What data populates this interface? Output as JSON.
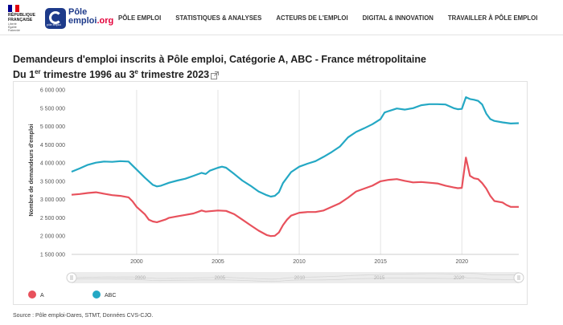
{
  "header": {
    "republic": [
      "RÉPUBLIQUE",
      "FRANÇAISE"
    ],
    "motto": [
      "Liberté",
      "Égalité",
      "Fraternité"
    ],
    "logo_line1": "Pôle",
    "logo_line2": "emploi",
    "logo_tld": ".org",
    "logo_badge": "pôle emploi",
    "nav": [
      "PÔLE EMPLOI",
      "STATISTIQUES & ANALYSES",
      "ACTEURS DE L'EMPLOI",
      "DIGITAL & INNOVATION",
      "TRAVAILLER À PÔLE EMPLOI"
    ],
    "colors": {
      "flag_blue": "#000091",
      "flag_red": "#e1000f",
      "brand": "#1d3a8a",
      "brand_accent": "#e4003a"
    }
  },
  "page": {
    "title_line1": "Demandeurs d'emploi inscrits à Pôle emploi, Catégorie A, ABC - France métropolitaine",
    "title_line2_pre": "Du 1",
    "title_line2_sup1": "er",
    "title_line2_mid": " trimestre 1996 au 3",
    "title_line2_sup2": "e",
    "title_line2_post": " trimestre 2023",
    "source": "Source : Pôle emploi-Dares, STMT, Données CVS-CJO."
  },
  "chart_data": {
    "type": "line",
    "title": "",
    "xlabel": "",
    "ylabel": "Nombre de demandeurs d'emploi",
    "xlim": [
      1996,
      2023.5
    ],
    "ylim": [
      1500000,
      6000000
    ],
    "yticks": [
      1500000,
      2000000,
      2500000,
      3000000,
      3500000,
      4000000,
      4500000,
      5000000,
      5500000,
      6000000
    ],
    "ytick_labels": [
      "1 500 000",
      "2 000 000",
      "2 500 000",
      "3 000 000",
      "3 500 000",
      "4 000 000",
      "4 500 000",
      "5 000 000",
      "5 500 000",
      "6 000 000"
    ],
    "xticks": [
      2000,
      2005,
      2010,
      2015,
      2020
    ],
    "xtick_labels": [
      "2000",
      "2005",
      "2010",
      "2015",
      "2020"
    ],
    "grid": "vertical",
    "legend": "bottom-left",
    "series": [
      {
        "name": "A",
        "color": "#e8515c",
        "points": [
          [
            1996.0,
            3130000
          ],
          [
            1996.5,
            3150000
          ],
          [
            1997.0,
            3180000
          ],
          [
            1997.5,
            3200000
          ],
          [
            1998.0,
            3160000
          ],
          [
            1998.5,
            3120000
          ],
          [
            1999.0,
            3100000
          ],
          [
            1999.5,
            3060000
          ],
          [
            1999.75,
            2950000
          ],
          [
            2000.0,
            2800000
          ],
          [
            2000.5,
            2600000
          ],
          [
            2000.75,
            2450000
          ],
          [
            2001.0,
            2400000
          ],
          [
            2001.25,
            2380000
          ],
          [
            2001.75,
            2450000
          ],
          [
            2002.0,
            2500000
          ],
          [
            2002.5,
            2540000
          ],
          [
            2003.0,
            2580000
          ],
          [
            2003.5,
            2620000
          ],
          [
            2003.75,
            2660000
          ],
          [
            2004.0,
            2700000
          ],
          [
            2004.25,
            2670000
          ],
          [
            2004.5,
            2680000
          ],
          [
            2005.0,
            2700000
          ],
          [
            2005.5,
            2690000
          ],
          [
            2006.0,
            2600000
          ],
          [
            2006.5,
            2450000
          ],
          [
            2007.0,
            2300000
          ],
          [
            2007.5,
            2150000
          ],
          [
            2008.0,
            2030000
          ],
          [
            2008.25,
            2000000
          ],
          [
            2008.5,
            2010000
          ],
          [
            2008.75,
            2100000
          ],
          [
            2009.0,
            2300000
          ],
          [
            2009.25,
            2450000
          ],
          [
            2009.5,
            2560000
          ],
          [
            2010.0,
            2640000
          ],
          [
            2010.5,
            2660000
          ],
          [
            2011.0,
            2660000
          ],
          [
            2011.5,
            2700000
          ],
          [
            2012.0,
            2800000
          ],
          [
            2012.5,
            2900000
          ],
          [
            2013.0,
            3050000
          ],
          [
            2013.5,
            3220000
          ],
          [
            2014.0,
            3300000
          ],
          [
            2014.5,
            3380000
          ],
          [
            2015.0,
            3500000
          ],
          [
            2015.5,
            3540000
          ],
          [
            2016.0,
            3560000
          ],
          [
            2016.5,
            3510000
          ],
          [
            2017.0,
            3470000
          ],
          [
            2017.5,
            3480000
          ],
          [
            2018.0,
            3460000
          ],
          [
            2018.5,
            3440000
          ],
          [
            2019.0,
            3380000
          ],
          [
            2019.5,
            3330000
          ],
          [
            2019.75,
            3310000
          ],
          [
            2020.0,
            3320000
          ],
          [
            2020.25,
            4150000
          ],
          [
            2020.5,
            3650000
          ],
          [
            2020.75,
            3580000
          ],
          [
            2021.0,
            3560000
          ],
          [
            2021.25,
            3450000
          ],
          [
            2021.5,
            3300000
          ],
          [
            2021.75,
            3100000
          ],
          [
            2022.0,
            2960000
          ],
          [
            2022.5,
            2920000
          ],
          [
            2022.75,
            2850000
          ],
          [
            2023.0,
            2800000
          ],
          [
            2023.5,
            2800000
          ]
        ]
      },
      {
        "name": "ABC",
        "color": "#24a8c4",
        "points": [
          [
            1996.0,
            3760000
          ],
          [
            1996.5,
            3850000
          ],
          [
            1997.0,
            3950000
          ],
          [
            1997.5,
            4010000
          ],
          [
            1998.0,
            4040000
          ],
          [
            1998.5,
            4030000
          ],
          [
            1999.0,
            4050000
          ],
          [
            1999.5,
            4040000
          ],
          [
            1999.75,
            3930000
          ],
          [
            2000.0,
            3820000
          ],
          [
            2000.5,
            3600000
          ],
          [
            2001.0,
            3400000
          ],
          [
            2001.25,
            3360000
          ],
          [
            2001.5,
            3380000
          ],
          [
            2002.0,
            3460000
          ],
          [
            2002.5,
            3520000
          ],
          [
            2003.0,
            3570000
          ],
          [
            2003.5,
            3650000
          ],
          [
            2004.0,
            3730000
          ],
          [
            2004.25,
            3700000
          ],
          [
            2004.5,
            3790000
          ],
          [
            2005.0,
            3870000
          ],
          [
            2005.25,
            3900000
          ],
          [
            2005.5,
            3870000
          ],
          [
            2006.0,
            3700000
          ],
          [
            2006.5,
            3520000
          ],
          [
            2007.0,
            3380000
          ],
          [
            2007.5,
            3220000
          ],
          [
            2008.0,
            3120000
          ],
          [
            2008.25,
            3080000
          ],
          [
            2008.5,
            3100000
          ],
          [
            2008.75,
            3200000
          ],
          [
            2009.0,
            3450000
          ],
          [
            2009.5,
            3750000
          ],
          [
            2010.0,
            3900000
          ],
          [
            2010.5,
            3980000
          ],
          [
            2011.0,
            4050000
          ],
          [
            2011.5,
            4170000
          ],
          [
            2012.0,
            4300000
          ],
          [
            2012.5,
            4450000
          ],
          [
            2013.0,
            4700000
          ],
          [
            2013.5,
            4850000
          ],
          [
            2014.0,
            4950000
          ],
          [
            2014.5,
            5060000
          ],
          [
            2015.0,
            5200000
          ],
          [
            2015.25,
            5380000
          ],
          [
            2015.5,
            5420000
          ],
          [
            2016.0,
            5490000
          ],
          [
            2016.5,
            5460000
          ],
          [
            2017.0,
            5500000
          ],
          [
            2017.5,
            5580000
          ],
          [
            2018.0,
            5610000
          ],
          [
            2018.5,
            5610000
          ],
          [
            2019.0,
            5600000
          ],
          [
            2019.5,
            5500000
          ],
          [
            2019.75,
            5470000
          ],
          [
            2020.0,
            5480000
          ],
          [
            2020.25,
            5800000
          ],
          [
            2020.5,
            5750000
          ],
          [
            2020.75,
            5730000
          ],
          [
            2021.0,
            5700000
          ],
          [
            2021.25,
            5600000
          ],
          [
            2021.5,
            5350000
          ],
          [
            2021.75,
            5200000
          ],
          [
            2022.0,
            5150000
          ],
          [
            2022.5,
            5110000
          ],
          [
            2023.0,
            5080000
          ],
          [
            2023.5,
            5090000
          ]
        ]
      }
    ]
  }
}
